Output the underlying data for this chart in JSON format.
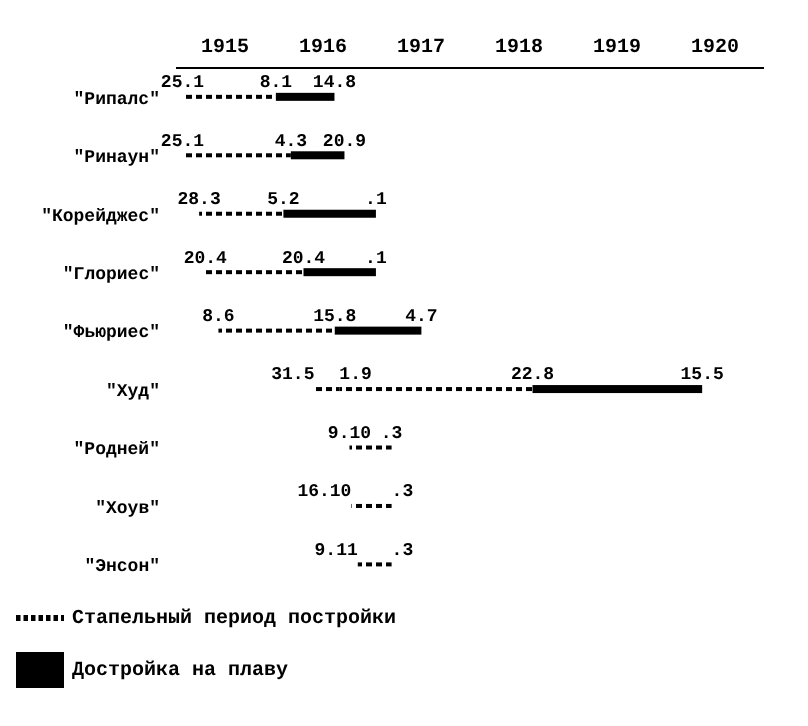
{
  "chart_data": {
    "type": "bar",
    "orientation": "horizontal",
    "categories": [
      "\"Рипалс\"",
      "\"Ринаун\"",
      "\"Корейджес\"",
      "\"Глориес\"",
      "\"Фьюриес\"",
      "\"Худ\"",
      "\"Родней\"",
      "\"Хоув\"",
      "\"Энсон\""
    ],
    "series": [
      {
        "color": "#000000",
        "line_style": "dashed",
        "base": [
          null,
          null,
          null,
          null,
          null,
          1916.413,
          null,
          null,
          null
        ],
        "values": [
          null,
          null,
          null,
          null,
          null,
          0.254,
          null,
          null,
          null
        ]
      },
      {
        "name": "Стапельный период постройки",
        "color": "#000000",
        "line_style": "dashed",
        "base": [
          1915.066,
          1915.066,
          1915.236,
          1915.299,
          1915.433,
          1916.667,
          1916.77,
          1916.79,
          1916.855
        ],
        "values": [
          0.953,
          1.106,
          0.86,
          1.002,
          1.187,
          1.971,
          0.43,
          0.41,
          0.345
        ]
      },
      {
        "name": "Достройка на плаву",
        "color": "#000000",
        "line_style": "solid",
        "base": [
          1916.019,
          1916.172,
          1916.096,
          1916.301,
          1916.62,
          1918.638,
          null,
          null,
          null
        ],
        "values": [
          0.598,
          0.547,
          0.944,
          0.739,
          0.884,
          1.731,
          null,
          null,
          null
        ]
      }
    ],
    "xlim": [
      1915,
      1921
    ],
    "xticks": [
      {
        "value": 1915.5,
        "label": "1915"
      },
      {
        "value": 1916.5,
        "label": "1916"
      },
      {
        "value": 1917.5,
        "label": "1917"
      },
      {
        "value": 1918.5,
        "label": "1918"
      },
      {
        "value": 1919.5,
        "label": "1919"
      },
      {
        "value": 1920.5,
        "label": "1920"
      }
    ],
    "legend": "bottom left",
    "annotations": [
      {
        "text": "25.1",
        "x": 1915.066,
        "y": "\"Рипалс\""
      },
      {
        "text": "8.1",
        "x": 1916.019,
        "y": "\"Рипалс\""
      },
      {
        "text": "14.8",
        "x": 1916.617,
        "y": "\"Рипалс\""
      },
      {
        "text": "25.1",
        "x": 1915.066,
        "y": "\"Ринаун\""
      },
      {
        "text": "4.3",
        "x": 1916.172,
        "y": "\"Ринаун\""
      },
      {
        "text": "20.9",
        "x": 1916.719,
        "y": "\"Ринаун\""
      },
      {
        "text": "28.3",
        "x": 1915.236,
        "y": "\"Корейджес\""
      },
      {
        "text": "5.2",
        "x": 1916.096,
        "y": "\"Корейджес\""
      },
      {
        "text": ".1",
        "x": 1917.04,
        "y": "\"Корейджес\""
      },
      {
        "text": "20.4",
        "x": 1915.299,
        "y": "\"Глориес\""
      },
      {
        "text": "20.4",
        "x": 1916.301,
        "y": "\"Глориес\""
      },
      {
        "text": ".1",
        "x": 1917.04,
        "y": "\"Глориес\""
      },
      {
        "text": "8.6",
        "x": 1915.433,
        "y": "\"Фьюриес\""
      },
      {
        "text": "15.8",
        "x": 1916.62,
        "y": "\"Фьюриес\""
      },
      {
        "text": "4.7",
        "x": 1917.504,
        "y": "\"Фьюриес\""
      },
      {
        "text": "31.5",
        "x": 1916.413,
        "y": "\"Худ\""
      },
      {
        "text": "1.9",
        "x": 1916.667,
        "y": "\"Худ\""
      },
      {
        "text": "22.8",
        "x": 1918.638,
        "y": "\"Худ\""
      },
      {
        "text": "15.5",
        "x": 1920.369,
        "y": "\"Худ\""
      },
      {
        "text": "9.10",
        "x": 1916.77,
        "y": "\"Родней\""
      },
      {
        "text": ".3",
        "x": 1917.2,
        "y": "\"Родней\""
      },
      {
        "text": "16.10",
        "x": 1916.79,
        "y": "\"Хоув\""
      },
      {
        "text": ".3",
        "x": 1917.2,
        "y": "\"Хоув\""
      },
      {
        "text": "9.11",
        "x": 1916.855,
        "y": "\"Энсон\""
      },
      {
        "text": ".3",
        "x": 1917.2,
        "y": "\"Энсон\""
      }
    ]
  }
}
